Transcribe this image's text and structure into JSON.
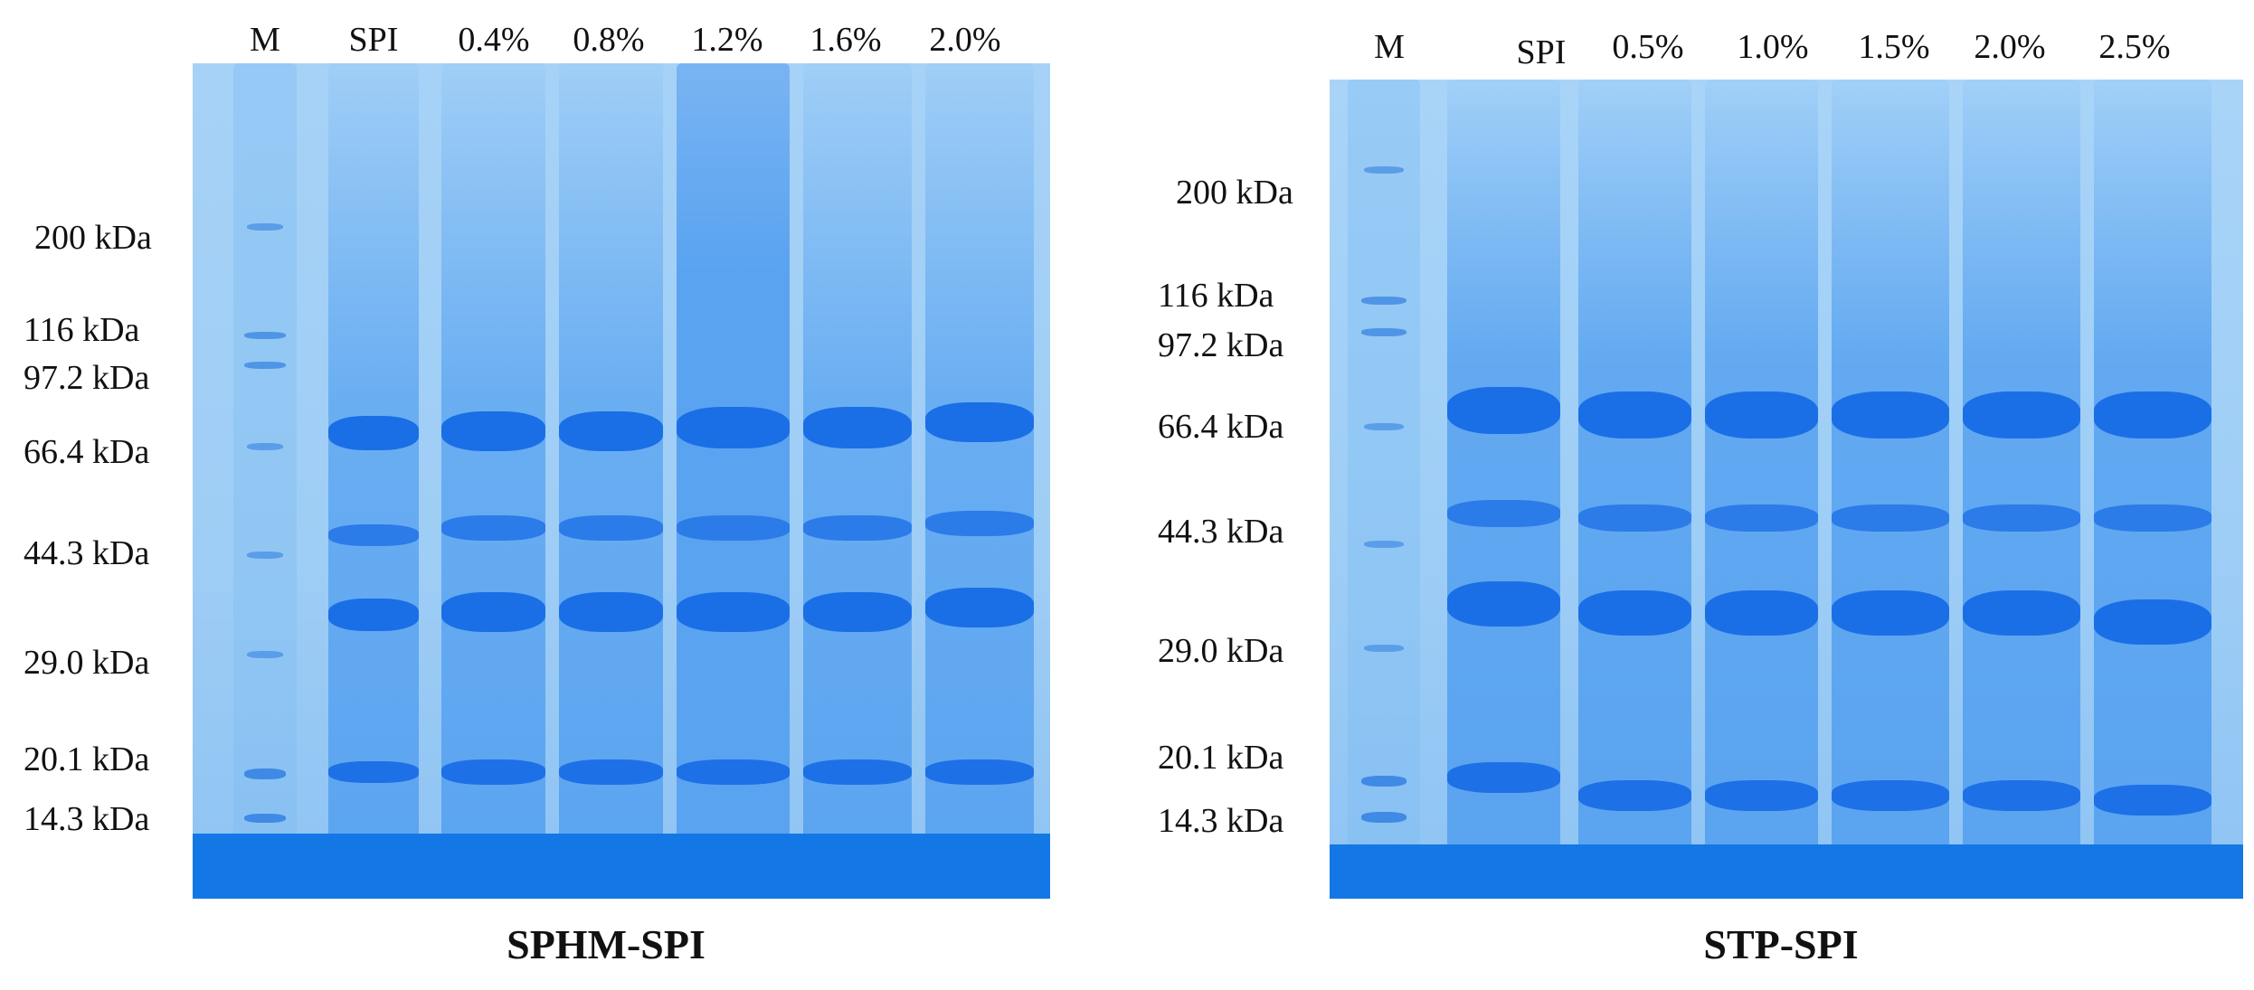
{
  "panels": [
    {
      "caption": "SPHM-SPI",
      "lanes": [
        "M",
        "SPI",
        "0.4%",
        "0.8%",
        "1.2%",
        "1.6%",
        "2.0%"
      ],
      "markers": [
        "200 kDa",
        "116  kDa",
        "97.2 kDa",
        "66.4  kDa",
        "44.3  kDa",
        "29.0  kDa",
        "20.1 kDa",
        "14.3  kDa"
      ]
    },
    {
      "caption": "STP-SPI",
      "lanes": [
        "M",
        "SPI",
        "0.5%",
        "1.0%",
        "1.5%",
        "2.0%",
        "2.5%"
      ],
      "markers": [
        "200 kDa",
        "116  kDa",
        "97.2 kDa",
        "66.4  kDa",
        "44.3  kDa",
        "29.0  kDa",
        "20.1 kDa",
        "14.3  kDa"
      ]
    }
  ],
  "colors": {
    "gel_background": "#9fcdf5",
    "lane": "#5fa8f2",
    "band": "#1a6fe6",
    "dye_front": "#1378e6"
  }
}
